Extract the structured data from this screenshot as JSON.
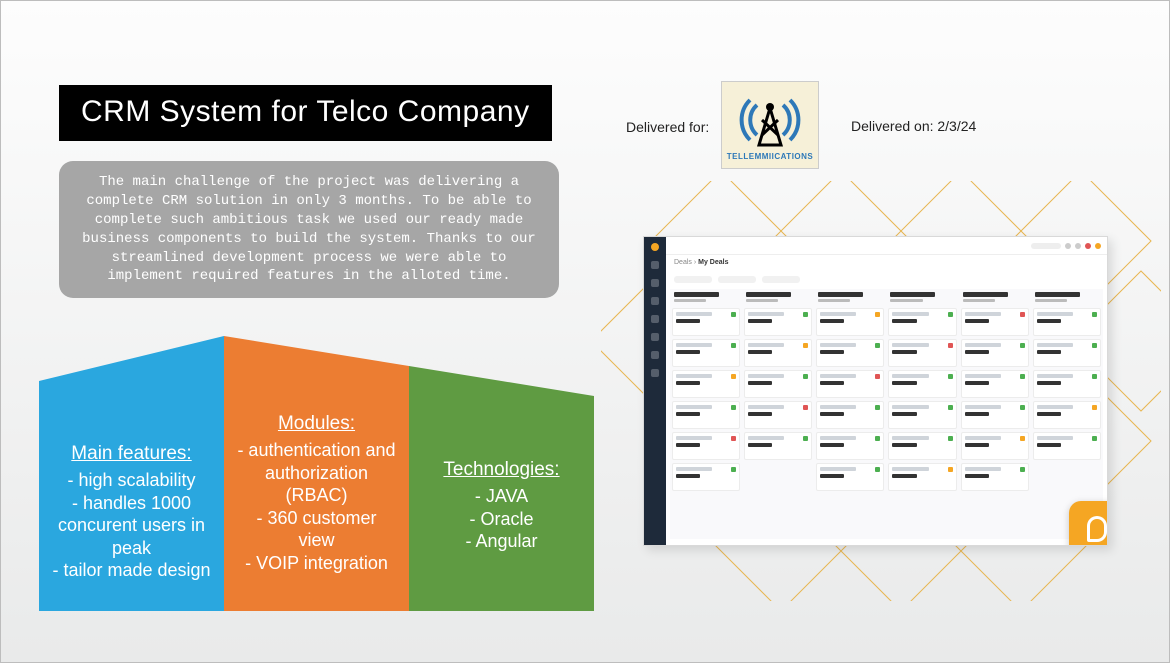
{
  "title": "CRM System for Telco Company",
  "description": "The main challenge of the project was delivering a complete CRM solution in only 3 months. To be able to complete such ambitious task we used our ready made business components to build the system. Thanks to our streamlined development process we were able to implement required features in the alloted time.",
  "delivered_for_label": "Delivered for:",
  "delivered_on_label": "Delivered on: 2/3/24",
  "logo_text": "TELLEMMIICATIONS",
  "panels": {
    "features": {
      "color": "#2aa7df",
      "heading": "Main features:",
      "lines": [
        "- high scalability",
        "- handles 1000 concurent users in peak",
        "- tailor made design"
      ]
    },
    "modules": {
      "color": "#ec7d32",
      "heading": "Modules:",
      "lines": [
        "- authentication and authorization (RBAC)",
        "- 360 customer view",
        "- VOIP integration"
      ]
    },
    "tech": {
      "color": "#5f9b42",
      "heading": "Technologies:",
      "lines": [
        "- JAVA",
        "- Oracle",
        "- Angular"
      ]
    }
  },
  "lattice_color": "#e8b651",
  "description_bg": "#a6a6a6",
  "dashboard": {
    "breadcrumb_a": "Deals ›",
    "breadcrumb_b": "My Deals",
    "columns": [
      "New",
      "Contacted",
      "Meeting scheduled",
      "Demo completed",
      "Negotiation",
      "Submitted"
    ],
    "card_counts": [
      6,
      5,
      6,
      6,
      6,
      5
    ],
    "flag_cycle": [
      "g",
      "g",
      "y",
      "g",
      "r",
      "g"
    ],
    "sidebar_bg": "#1e2a3a",
    "accent": "#f5a623"
  }
}
